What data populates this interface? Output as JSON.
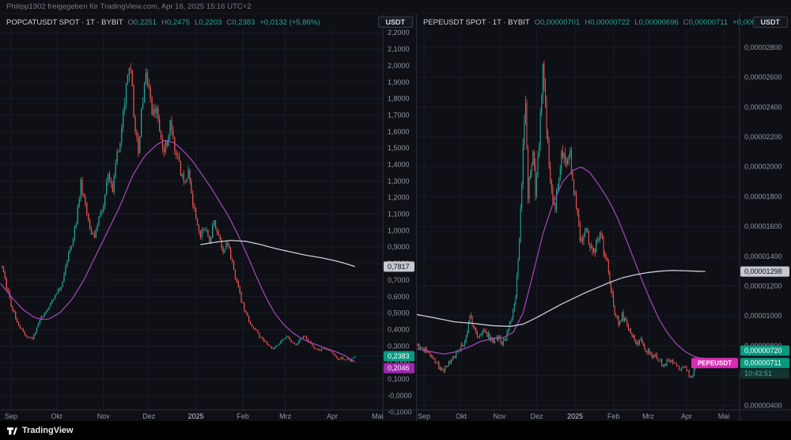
{
  "topbar": {
    "text": "Philipp1902 freigegeben für TradingView.com, Apr 16, 2025 15:16 UTC+2"
  },
  "footer": {
    "logo_text": "TradingView"
  },
  "theme": {
    "background": "#0e1015",
    "footer_bg": "#000000",
    "up": "#26a69a",
    "down": "#ef5350",
    "ma_white": "#c9ccd3",
    "ma_purple": "#ab47bc",
    "tag_teal": "#089981",
    "tag_purple": "#9c27b0",
    "tag_white": "#c5c8ce",
    "symbol_badge": "#d92bb4",
    "countdown_bg": "#12332e",
    "countdown_text": "#3fae92",
    "axis_text": "#9097a1",
    "grid": "#171b26",
    "separator": "#2a2e39",
    "header_text": "#d1d4dc",
    "muted_text": "#787b86"
  },
  "chart_data": [
    {
      "type": "candlestick",
      "symbol": "POPCATUSDT",
      "exchange": "BYBIT",
      "interval": "1T",
      "currency_badge": "USDT",
      "header": {
        "title": "POPCATUSDT SPOT · 1T · BYBIT",
        "ohlc": [
          [
            "O",
            "0,2251"
          ],
          [
            "H",
            "0,2475"
          ],
          [
            "L",
            "0,2203"
          ],
          [
            "C",
            "0,2383"
          ]
        ],
        "change": "+0,0132 (+5,86%)"
      },
      "price_scale": 1,
      "ylim": [
        -0.087,
        2.225
      ],
      "ticks": [
        [
          2.2,
          "2,2000"
        ],
        [
          2.1,
          "2,1000"
        ],
        [
          2.0,
          "2,0000"
        ],
        [
          1.9,
          "1,9000"
        ],
        [
          1.8,
          "1,8000"
        ],
        [
          1.7,
          "1,7000"
        ],
        [
          1.6,
          "1,6000"
        ],
        [
          1.5,
          "1,5000"
        ],
        [
          1.4,
          "1,4000"
        ],
        [
          1.3,
          "1,3000"
        ],
        [
          1.2,
          "1,2000"
        ],
        [
          1.1,
          "1,1000"
        ],
        [
          1.0,
          "1,0000"
        ],
        [
          0.9,
          "0,9000"
        ],
        [
          0.8,
          "0,8000"
        ],
        [
          0.7,
          "0,7000"
        ],
        [
          0.6,
          "0,6000"
        ],
        [
          0.5,
          "0,5000"
        ],
        [
          0.4,
          "0,4000"
        ],
        [
          0.3,
          "0,3000"
        ],
        [
          0.2,
          "0,2000"
        ],
        [
          0.1,
          "0,1000"
        ],
        [
          0.0,
          "-0,0000"
        ],
        [
          -0.1,
          "-0,1000"
        ]
      ],
      "months": [
        [
          "Sep",
          0
        ],
        [
          "Okt",
          30
        ],
        [
          "Nov",
          61
        ],
        [
          "Dez",
          91
        ],
        [
          "2025",
          122
        ],
        [
          "Feb",
          153
        ],
        [
          "Mrz",
          181
        ],
        [
          "Apr",
          212
        ],
        [
          "Mai",
          242
        ]
      ],
      "day_range": [
        -7,
        227
      ],
      "close_keyframes": [
        [
          -7,
          0.8
        ],
        [
          -4,
          0.7
        ],
        [
          0,
          0.55
        ],
        [
          5,
          0.42
        ],
        [
          10,
          0.36
        ],
        [
          14,
          0.34
        ],
        [
          18,
          0.44
        ],
        [
          23,
          0.52
        ],
        [
          28,
          0.58
        ],
        [
          33,
          0.66
        ],
        [
          38,
          0.85
        ],
        [
          43,
          1.05
        ],
        [
          46,
          1.28
        ],
        [
          49,
          1.18
        ],
        [
          52,
          1.02
        ],
        [
          55,
          0.95
        ],
        [
          58,
          1.08
        ],
        [
          61,
          1.15
        ],
        [
          64,
          1.32
        ],
        [
          67,
          1.25
        ],
        [
          70,
          1.45
        ],
        [
          73,
          1.62
        ],
        [
          76,
          1.85
        ],
        [
          78,
          2.02
        ],
        [
          80,
          1.85
        ],
        [
          82,
          1.6
        ],
        [
          84,
          1.48
        ],
        [
          86,
          1.7
        ],
        [
          89,
          1.92
        ],
        [
          91,
          1.83
        ],
        [
          93,
          1.7
        ],
        [
          96,
          1.78
        ],
        [
          98,
          1.62
        ],
        [
          100,
          1.48
        ],
        [
          103,
          1.55
        ],
        [
          105,
          1.65
        ],
        [
          108,
          1.5
        ],
        [
          111,
          1.4
        ],
        [
          114,
          1.28
        ],
        [
          117,
          1.35
        ],
        [
          120,
          1.18
        ],
        [
          122,
          1.05
        ],
        [
          125,
          0.98
        ],
        [
          128,
          1.02
        ],
        [
          131,
          0.92
        ],
        [
          134,
          1.05
        ],
        [
          137,
          0.95
        ],
        [
          140,
          0.88
        ],
        [
          143,
          0.92
        ],
        [
          146,
          0.8
        ],
        [
          149,
          0.68
        ],
        [
          152,
          0.58
        ],
        [
          155,
          0.5
        ],
        [
          158,
          0.44
        ],
        [
          161,
          0.4
        ],
        [
          164,
          0.36
        ],
        [
          167,
          0.33
        ],
        [
          170,
          0.3
        ],
        [
          173,
          0.28
        ],
        [
          176,
          0.31
        ],
        [
          179,
          0.34
        ],
        [
          182,
          0.36
        ],
        [
          185,
          0.33
        ],
        [
          188,
          0.3
        ],
        [
          191,
          0.34
        ],
        [
          194,
          0.36
        ],
        [
          197,
          0.32
        ],
        [
          200,
          0.29
        ],
        [
          203,
          0.27
        ],
        [
          206,
          0.29
        ],
        [
          209,
          0.275
        ],
        [
          212,
          0.26
        ],
        [
          214,
          0.24
        ],
        [
          216,
          0.215
        ],
        [
          218,
          0.23
        ],
        [
          220,
          0.22
        ],
        [
          222,
          0.225
        ],
        [
          224,
          0.21
        ],
        [
          227,
          0.2383
        ]
      ],
      "ma_purple": [
        [
          -7,
          0.68
        ],
        [
          0,
          0.6
        ],
        [
          8,
          0.52
        ],
        [
          16,
          0.47
        ],
        [
          24,
          0.46
        ],
        [
          32,
          0.5
        ],
        [
          40,
          0.58
        ],
        [
          48,
          0.7
        ],
        [
          56,
          0.85
        ],
        [
          64,
          1.0
        ],
        [
          72,
          1.15
        ],
        [
          80,
          1.33
        ],
        [
          88,
          1.45
        ],
        [
          96,
          1.52
        ],
        [
          102,
          1.55
        ],
        [
          108,
          1.53
        ],
        [
          114,
          1.48
        ],
        [
          120,
          1.42
        ],
        [
          126,
          1.34
        ],
        [
          132,
          1.26
        ],
        [
          138,
          1.17
        ],
        [
          144,
          1.08
        ],
        [
          150,
          0.97
        ],
        [
          156,
          0.85
        ],
        [
          162,
          0.72
        ],
        [
          168,
          0.6
        ],
        [
          174,
          0.5
        ],
        [
          180,
          0.43
        ],
        [
          186,
          0.38
        ],
        [
          192,
          0.345
        ],
        [
          198,
          0.32
        ],
        [
          204,
          0.3
        ],
        [
          210,
          0.28
        ],
        [
          216,
          0.26
        ],
        [
          221,
          0.24
        ],
        [
          224,
          0.22
        ],
        [
          227,
          0.2046
        ]
      ],
      "ma_white": [
        [
          125,
          0.915
        ],
        [
          135,
          0.93
        ],
        [
          145,
          0.94
        ],
        [
          155,
          0.935
        ],
        [
          165,
          0.915
        ],
        [
          175,
          0.89
        ],
        [
          185,
          0.87
        ],
        [
          195,
          0.85
        ],
        [
          205,
          0.835
        ],
        [
          215,
          0.815
        ],
        [
          221,
          0.8
        ],
        [
          227,
          0.7817
        ]
      ],
      "tags": [
        {
          "label": "0,7817",
          "value": 0.7817,
          "style": "white"
        },
        {
          "label": "0,2383",
          "value": 0.2383,
          "style": "teal",
          "priceline": true
        },
        {
          "label": "0,2046",
          "value": 0.2046,
          "style": "purple",
          "dy": 8
        }
      ]
    },
    {
      "type": "candlestick",
      "symbol": "PEPEUSDT",
      "exchange": "BYBIT",
      "interval": "1T",
      "currency_badge": "USDT",
      "header": {
        "title": "PEPEUSDT SPOT · 1T · BYBIT",
        "ohlc": [
          [
            "O",
            "0,00000701"
          ],
          [
            "H",
            "0,00000722"
          ],
          [
            "L",
            "0,00000696"
          ],
          [
            "C",
            "0,00000711"
          ]
        ],
        "change": "+0,00000010 (+1,43%)"
      },
      "price_scale": 1e-08,
      "ylim": [
        370,
        2927
      ],
      "ticks": [
        [
          2800,
          "0,00002800"
        ],
        [
          2600,
          "0,00002600"
        ],
        [
          2400,
          "0,00002400"
        ],
        [
          2200,
          "0,00002200"
        ],
        [
          2000,
          "0,00002000"
        ],
        [
          1800,
          "0,00001800"
        ],
        [
          1600,
          "0,00001600"
        ],
        [
          1400,
          "0,00001400"
        ],
        [
          1200,
          "0,00001200"
        ],
        [
          1000,
          "0,00001000"
        ],
        [
          800,
          "0,00000800"
        ],
        [
          600,
          "0,00000600"
        ],
        [
          400,
          "0,00000400"
        ]
      ],
      "months": [
        [
          "Sep",
          0
        ],
        [
          "Okt",
          30
        ],
        [
          "Nov",
          61
        ],
        [
          "Dez",
          91
        ],
        [
          "2025",
          122
        ],
        [
          "Feb",
          153
        ],
        [
          "Mrz",
          181
        ],
        [
          "Apr",
          212
        ],
        [
          "Mai",
          242
        ]
      ],
      "day_range": [
        -6,
        227
      ],
      "close_keyframes": [
        [
          -6,
          800
        ],
        [
          0,
          780
        ],
        [
          6,
          720
        ],
        [
          12,
          660
        ],
        [
          16,
          640
        ],
        [
          22,
          700
        ],
        [
          28,
          760
        ],
        [
          33,
          820
        ],
        [
          37,
          1000
        ],
        [
          40,
          920
        ],
        [
          44,
          860
        ],
        [
          48,
          900
        ],
        [
          52,
          870
        ],
        [
          56,
          830
        ],
        [
          60,
          850
        ],
        [
          63,
          810
        ],
        [
          66,
          840
        ],
        [
          70,
          950
        ],
        [
          74,
          1150
        ],
        [
          77,
          1500
        ],
        [
          80,
          2100
        ],
        [
          82,
          2400
        ],
        [
          84,
          1800
        ],
        [
          86,
          1950
        ],
        [
          88,
          2150
        ],
        [
          90,
          1850
        ],
        [
          93,
          2150
        ],
        [
          96,
          2700
        ],
        [
          98,
          2400
        ],
        [
          100,
          2100
        ],
        [
          103,
          1850
        ],
        [
          106,
          1750
        ],
        [
          109,
          1950
        ],
        [
          112,
          2100
        ],
        [
          115,
          1980
        ],
        [
          118,
          2080
        ],
        [
          121,
          1850
        ],
        [
          124,
          1650
        ],
        [
          127,
          1480
        ],
        [
          130,
          1600
        ],
        [
          133,
          1520
        ],
        [
          136,
          1400
        ],
        [
          139,
          1500
        ],
        [
          142,
          1560
        ],
        [
          145,
          1450
        ],
        [
          148,
          1350
        ],
        [
          151,
          1200
        ],
        [
          154,
          1020
        ],
        [
          157,
          950
        ],
        [
          160,
          1010
        ],
        [
          163,
          960
        ],
        [
          166,
          900
        ],
        [
          169,
          860
        ],
        [
          172,
          810
        ],
        [
          175,
          830
        ],
        [
          178,
          790
        ],
        [
          181,
          760
        ],
        [
          184,
          710
        ],
        [
          187,
          730
        ],
        [
          190,
          700
        ],
        [
          193,
          670
        ],
        [
          196,
          690
        ],
        [
          199,
          710
        ],
        [
          202,
          690
        ],
        [
          205,
          665
        ],
        [
          208,
          645
        ],
        [
          211,
          655
        ],
        [
          214,
          610
        ],
        [
          216,
          585
        ],
        [
          218,
          640
        ],
        [
          220,
          670
        ],
        [
          222,
          690
        ],
        [
          224,
          665
        ],
        [
          227,
          711
        ]
      ],
      "ma_purple": [
        [
          -6,
          780
        ],
        [
          6,
          760
        ],
        [
          16,
          745
        ],
        [
          26,
          760
        ],
        [
          36,
          790
        ],
        [
          46,
          830
        ],
        [
          56,
          850
        ],
        [
          64,
          855
        ],
        [
          72,
          890
        ],
        [
          80,
          1020
        ],
        [
          88,
          1280
        ],
        [
          96,
          1550
        ],
        [
          104,
          1750
        ],
        [
          112,
          1900
        ],
        [
          120,
          1975
        ],
        [
          127,
          2000
        ],
        [
          134,
          1960
        ],
        [
          141,
          1880
        ],
        [
          148,
          1790
        ],
        [
          155,
          1680
        ],
        [
          162,
          1540
        ],
        [
          169,
          1390
        ],
        [
          176,
          1240
        ],
        [
          183,
          1100
        ],
        [
          190,
          975
        ],
        [
          197,
          880
        ],
        [
          204,
          810
        ],
        [
          211,
          760
        ],
        [
          218,
          728
        ],
        [
          223,
          718
        ],
        [
          227,
          715
        ]
      ],
      "ma_white": [
        [
          -6,
          1010
        ],
        [
          10,
          985
        ],
        [
          25,
          960
        ],
        [
          40,
          950
        ],
        [
          55,
          935
        ],
        [
          70,
          930
        ],
        [
          80,
          945
        ],
        [
          90,
          985
        ],
        [
          100,
          1030
        ],
        [
          110,
          1075
        ],
        [
          120,
          1115
        ],
        [
          130,
          1155
        ],
        [
          140,
          1190
        ],
        [
          150,
          1225
        ],
        [
          160,
          1255
        ],
        [
          170,
          1275
        ],
        [
          180,
          1290
        ],
        [
          190,
          1300
        ],
        [
          200,
          1305
        ],
        [
          210,
          1303
        ],
        [
          220,
          1300
        ],
        [
          227,
          1298
        ]
      ],
      "tags": [
        {
          "label": "0,00001298",
          "value": 1298,
          "style": "white"
        },
        {
          "label": "0,00000720",
          "value": 720,
          "style": "teal",
          "dy": -9
        },
        {
          "label": "0,00000711",
          "value": 711,
          "style": "teal",
          "dy": 5,
          "priceline": true,
          "symbol_badge": "PEPEUSDT",
          "sub": "10:43:51"
        }
      ]
    }
  ]
}
